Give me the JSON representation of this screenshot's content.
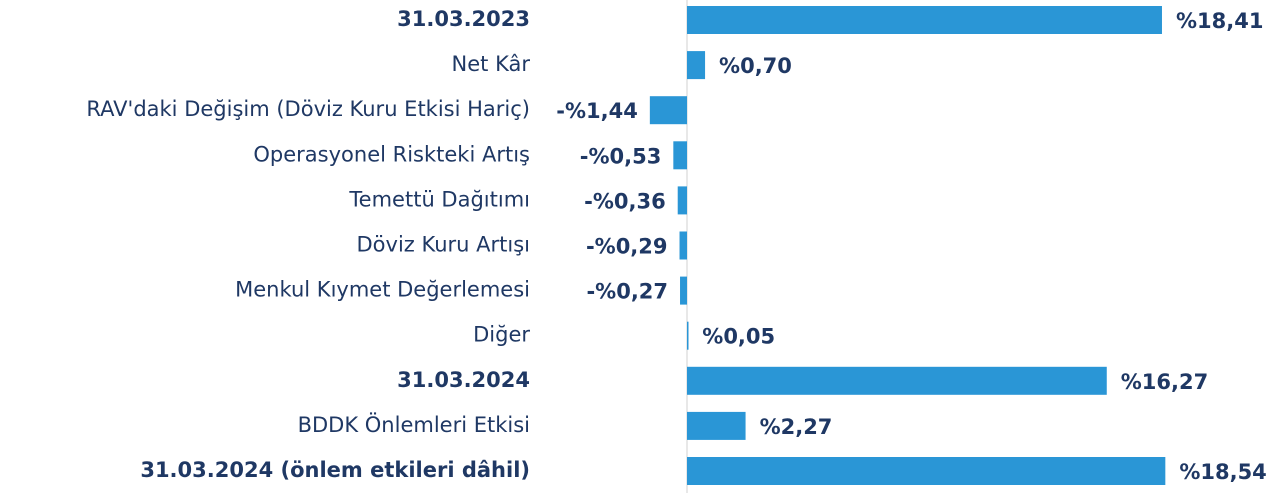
{
  "chart_data": {
    "type": "bar",
    "orientation": "horizontal",
    "color": "#2a96d6",
    "categories": [
      "31.03.2023",
      "Net Kâr",
      "RAV'daki Değişim (Döviz Kuru Etkisi Hariç)",
      "Operasyonel Riskteki Artış",
      "Temettü Dağıtımı",
      "Döviz Kuru Artışı",
      "Menkul Kıymet Değerlemesi",
      "Diğer",
      "31.03.2024",
      "BDDK Önlemleri Etkisi",
      "31.03.2024 (önlem etkileri dâhil)"
    ],
    "bold": [
      true,
      false,
      false,
      false,
      false,
      false,
      false,
      false,
      true,
      false,
      true
    ],
    "values": [
      18.41,
      0.7,
      -1.44,
      -0.53,
      -0.36,
      -0.29,
      -0.27,
      0.05,
      16.27,
      2.27,
      18.54
    ],
    "value_labels": [
      "%18,41",
      "%0,70",
      "-%1,44",
      "-%0,53",
      "-%0,36",
      "-%0,29",
      "-%0,27",
      "%0,05",
      "%16,27",
      "%2,27",
      "%18,54"
    ]
  }
}
